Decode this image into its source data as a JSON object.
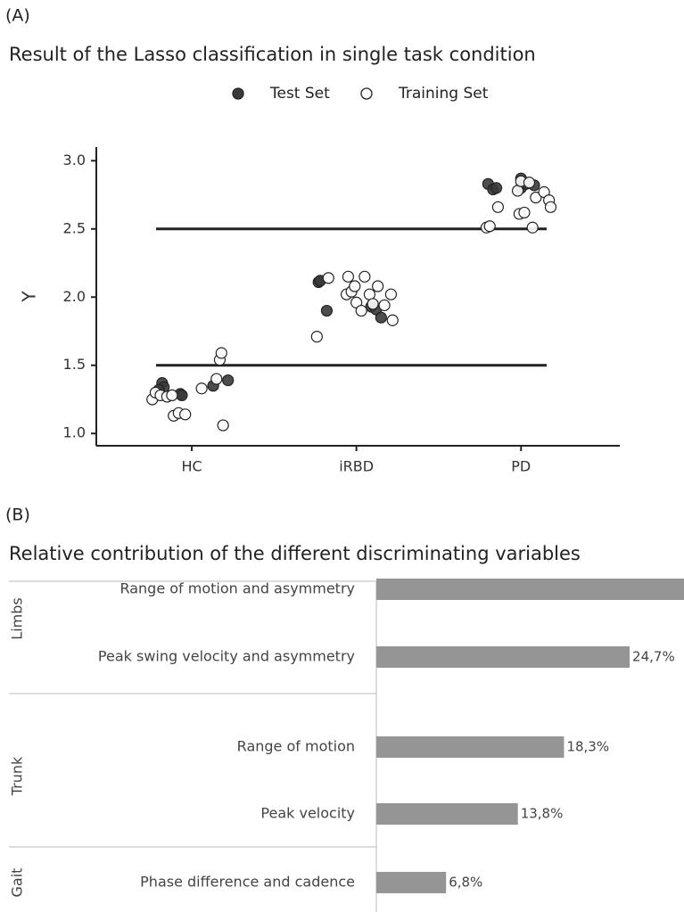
{
  "chart_data": [
    {
      "type": "scatter",
      "panel_label": "(A)",
      "title": "Result of the Lasso classification in single task condition",
      "y_label": "Y",
      "xlim": [
        0.42,
        3.6
      ],
      "xticks": [
        {
          "value": 1,
          "label": "HC"
        },
        {
          "value": 2,
          "label": "iRBD"
        },
        {
          "value": 3,
          "label": "PD"
        }
      ],
      "ylim": [
        0.91,
        3.1
      ],
      "yticks": [
        {
          "value": 1,
          "label": "1.0"
        },
        {
          "value": 1.5,
          "label": "1.5"
        },
        {
          "value": 2,
          "label": "2.0"
        },
        {
          "value": 2.5,
          "label": "2.5"
        },
        {
          "value": 3,
          "label": "3.0"
        }
      ],
      "hlines": [
        1.5,
        2.5
      ],
      "series": [
        {
          "name": "Test Set",
          "color": "#3a3a3a",
          "x": [
            0.82,
            0.83,
            0.8,
            0.93,
            0.94,
            1.13,
            1.22,
            1.77,
            1.78,
            1.82,
            2.09,
            2.12,
            2.15,
            2.8,
            2.83,
            2.85,
            3.0,
            3.0,
            3.03,
            3.08
          ],
          "values": [
            1.37,
            1.34,
            1.32,
            1.29,
            1.28,
            1.35,
            1.39,
            2.11,
            2.12,
            1.9,
            1.93,
            1.91,
            1.85,
            2.83,
            2.79,
            2.8,
            2.8,
            2.87,
            2.83,
            2.82
          ]
        },
        {
          "name": "Training Set",
          "color": "#ffffff",
          "x": [
            0.76,
            0.78,
            0.81,
            0.85,
            0.88,
            0.89,
            0.92,
            0.96,
            1.06,
            1.15,
            1.17,
            1.18,
            1.19,
            1.76,
            1.83,
            1.94,
            1.95,
            1.97,
            1.99,
            2.0,
            2.03,
            2.05,
            2.08,
            2.1,
            2.13,
            2.17,
            2.21,
            2.22,
            2.79,
            2.81,
            2.86,
            2.98,
            2.99,
            3.0,
            3.02,
            3.05,
            3.07,
            3.09,
            3.14,
            3.17,
            3.18
          ],
          "values": [
            1.25,
            1.3,
            1.28,
            1.27,
            1.28,
            1.13,
            1.15,
            1.14,
            1.33,
            1.4,
            1.54,
            1.59,
            1.06,
            1.71,
            2.14,
            2.02,
            2.15,
            2.04,
            2.08,
            1.96,
            1.9,
            2.15,
            2.02,
            1.95,
            2.08,
            1.94,
            2.02,
            1.83,
            2.51,
            2.52,
            2.66,
            2.78,
            2.61,
            2.85,
            2.62,
            2.84,
            2.51,
            2.73,
            2.77,
            2.71,
            2.66
          ]
        }
      ]
    },
    {
      "type": "barh",
      "panel_label": "(B)",
      "title": "Relative contribution of the different discriminating variables",
      "categories": [
        "Range of motion and asymmetry",
        "Peak  swing velocity and asymmetry",
        "Range of motion",
        "Peak  velocity",
        "Phase difference and cadence"
      ],
      "groups": [
        "Limbs",
        "Limbs",
        "Trunk",
        "Trunk",
        "Gait"
      ],
      "values": [
        36.4,
        24.7,
        18.3,
        13.8,
        6.8
      ],
      "value_labels": [
        null,
        "24,7%",
        "18,3%",
        "13,8%",
        "6,8%"
      ],
      "color": "#959595"
    }
  ]
}
